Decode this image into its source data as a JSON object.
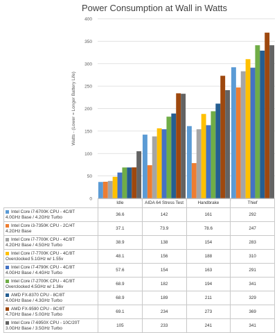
{
  "chart_data": {
    "type": "bar",
    "title": "Power Consumption at Wall in Watts",
    "ylabel": "Watts - (Lower = Longer Battery Life)",
    "xlabel": "",
    "ylim": [
      0,
      400
    ],
    "yticks": [
      0,
      50,
      100,
      150,
      200,
      250,
      300,
      350,
      400
    ],
    "grid": true,
    "legend": "table-below",
    "categories": [
      "Idle",
      "AIDA 64 Stress Test",
      "Handbrake",
      "Thief"
    ],
    "series": [
      {
        "name": "Intel Core i7-6700K CPU - 4C/8T\n4.0GHz Base / 4.2GHz Turbo",
        "color": "#5b9bd5",
        "values": [
          36.6,
          142,
          161,
          292
        ]
      },
      {
        "name": "Intel Core i3-7350K CPU - 2C/4T\n4.2GHz Base",
        "color": "#ed7d31",
        "values": [
          37.1,
          73.9,
          78.6,
          247
        ]
      },
      {
        "name": "Intel Core i7-7700K CPU - 4C/8T\n4.2GHz Base / 4.5GHz Turbo",
        "color": "#a5a5a5",
        "values": [
          38.9,
          138,
          154,
          283
        ]
      },
      {
        "name": "Intel Core i7-7700K CPU - 4C/8T\nOverclocked 5.1GHz w/ 1.55v",
        "color": "#ffc000",
        "values": [
          48.1,
          156,
          188,
          310
        ]
      },
      {
        "name": "Intel Core i7-4790K CPU - 4C/8T\n4.0GHz Base / 4.4GHz Turbo",
        "color": "#4472c4",
        "values": [
          57.6,
          154,
          163,
          291
        ]
      },
      {
        "name": "Intel Core i7-2700K CPU - 4C/8T\nOverclocked 4.5GHz w/ 1.36v",
        "color": "#70ad47",
        "values": [
          68.9,
          182,
          194,
          341
        ]
      },
      {
        "name": "AMD FX-8370 CPU - 8C/8T\n4.0GHz Base / 4.3GHz Turbo",
        "color": "#255e91",
        "values": [
          68.9,
          189,
          211,
          329
        ]
      },
      {
        "name": "AMD FX-9590 CPU - 8C/8T\n4.7GHz Base / 5.0GHz Turbo",
        "color": "#9e480e",
        "values": [
          69.1,
          234,
          273,
          369
        ]
      },
      {
        "name": "Intel Core i7-6950X CPU - 10C/20T\n3.0GHz Base / 3.5GHz Turbo",
        "color": "#636363",
        "values": [
          105,
          233,
          241,
          341
        ]
      }
    ]
  }
}
